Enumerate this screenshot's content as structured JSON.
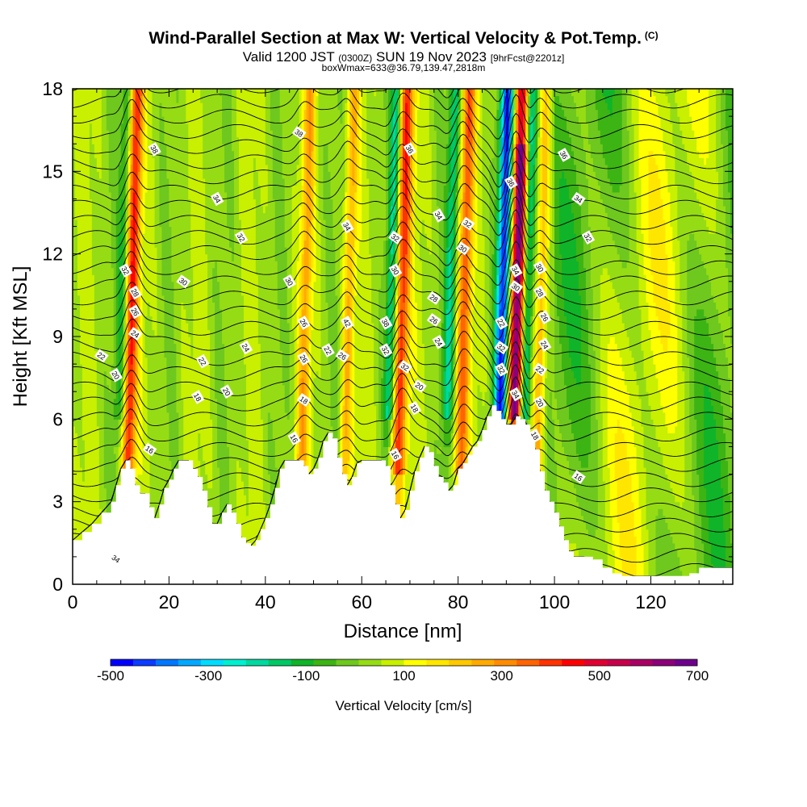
{
  "header": {
    "title": "Wind-Parallel Section at Max W: Vertical Velocity & Pot.Temp.",
    "title_mark": "(C)",
    "valid_prefix": "Valid 1200 JST",
    "valid_utc": "(0300Z)",
    "valid_date": "SUN 19 Nov 2023",
    "forecast": "[9hrFcst@2201z]",
    "box_info": "boxWmax=633@36.79,139.47,2818m"
  },
  "chart_data": {
    "type": "heatmap",
    "title": "Wind-Parallel Section at Max W: Vertical Velocity & Pot.Temp.",
    "xlabel": "Distance [nm]",
    "ylabel": "Height [Kft MSL]",
    "xlim": [
      0,
      137
    ],
    "ylim": [
      0,
      18
    ],
    "x_ticks": [
      "0",
      "20",
      "40",
      "60",
      "80",
      "100",
      "120"
    ],
    "y_ticks": [
      "0",
      "3",
      "6",
      "9",
      "12",
      "15",
      "18"
    ],
    "colorbar": {
      "label": "Vertical Velocity [cm/s]",
      "range": [
        -500,
        700
      ],
      "tick_labels": [
        "-500",
        "-300",
        "-100",
        "100",
        "300",
        "500",
        "700"
      ],
      "colors": [
        "#0000ff",
        "#0b3cff",
        "#0077ff",
        "#00a9ff",
        "#00dcff",
        "#00f0d0",
        "#00d9a0",
        "#00c864",
        "#10b428",
        "#3cb414",
        "#6ec81e",
        "#96dc14",
        "#c8f000",
        "#ffff00",
        "#ffe600",
        "#ffc800",
        "#ffaa00",
        "#ff8c00",
        "#ff6400",
        "#ff3200",
        "#ff0000",
        "#e10032",
        "#c8004b",
        "#aa0064",
        "#8c0078",
        "#6e008c"
      ]
    },
    "terrain_kft": [
      [
        0,
        1.6
      ],
      [
        2,
        1.9
      ],
      [
        4,
        2.2
      ],
      [
        6,
        2.6
      ],
      [
        8,
        3.0
      ],
      [
        9,
        3.6
      ],
      [
        10,
        4.2
      ],
      [
        11,
        4.5
      ],
      [
        12,
        4.2
      ],
      [
        13,
        3.6
      ],
      [
        14,
        3.3
      ],
      [
        15,
        3.3
      ],
      [
        16,
        2.8
      ],
      [
        17,
        2.4
      ],
      [
        18,
        2.9
      ],
      [
        19,
        3.5
      ],
      [
        20,
        3.8
      ],
      [
        21,
        4.2
      ],
      [
        22,
        4.5
      ],
      [
        24,
        4.5
      ],
      [
        25,
        4.2
      ],
      [
        26,
        3.9
      ],
      [
        27,
        3.4
      ],
      [
        28,
        2.8
      ],
      [
        29,
        2.2
      ],
      [
        30,
        2.2
      ],
      [
        31,
        2.6
      ],
      [
        32,
        2.9
      ],
      [
        33,
        2.6
      ],
      [
        34,
        2.2
      ],
      [
        35,
        1.7
      ],
      [
        36,
        1.5
      ],
      [
        37,
        1.4
      ],
      [
        38,
        1.6
      ],
      [
        39,
        2.0
      ],
      [
        40,
        2.4
      ],
      [
        41,
        2.9
      ],
      [
        42,
        3.5
      ],
      [
        43,
        4.2
      ],
      [
        44,
        4.5
      ],
      [
        46,
        4.5
      ],
      [
        47,
        4.5
      ],
      [
        48,
        4.3
      ],
      [
        49,
        4.0
      ],
      [
        50,
        4.2
      ],
      [
        51,
        4.6
      ],
      [
        52,
        5.2
      ],
      [
        53,
        5.5
      ],
      [
        54,
        5.3
      ],
      [
        55,
        4.6
      ],
      [
        56,
        4.0
      ],
      [
        57,
        3.6
      ],
      [
        58,
        3.9
      ],
      [
        59,
        4.4
      ],
      [
        60,
        4.5
      ],
      [
        62,
        4.5
      ],
      [
        64,
        4.5
      ],
      [
        65,
        4.3
      ],
      [
        66,
        3.6
      ],
      [
        67,
        2.9
      ],
      [
        68,
        2.4
      ],
      [
        69,
        2.7
      ],
      [
        70,
        3.4
      ],
      [
        71,
        4.1
      ],
      [
        72,
        4.6
      ],
      [
        73,
        5.0
      ],
      [
        74,
        4.8
      ],
      [
        75,
        4.3
      ],
      [
        76,
        3.9
      ],
      [
        77,
        3.7
      ],
      [
        78,
        3.4
      ],
      [
        79,
        3.6
      ],
      [
        80,
        4.2
      ],
      [
        81,
        4.4
      ],
      [
        82,
        4.7
      ],
      [
        83,
        5.0
      ],
      [
        84,
        5.2
      ],
      [
        85,
        5.6
      ],
      [
        86,
        6.1
      ],
      [
        87,
        6.5
      ],
      [
        88,
        6.3
      ],
      [
        89,
        6.0
      ],
      [
        90,
        5.8
      ],
      [
        91,
        5.8
      ],
      [
        92,
        6.1
      ],
      [
        93,
        6.0
      ],
      [
        94,
        5.8
      ],
      [
        95,
        5.5
      ],
      [
        96,
        4.9
      ],
      [
        97,
        4.1
      ],
      [
        98,
        3.4
      ],
      [
        99,
        3.0
      ],
      [
        100,
        2.6
      ],
      [
        101,
        2.1
      ],
      [
        102,
        1.6
      ],
      [
        103,
        1.2
      ],
      [
        104,
        1.0
      ],
      [
        106,
        1.0
      ],
      [
        108,
        0.9
      ],
      [
        110,
        0.6
      ],
      [
        112,
        0.4
      ],
      [
        114,
        0.3
      ],
      [
        120,
        0.3
      ],
      [
        126,
        0.3
      ],
      [
        128,
        0.4
      ],
      [
        130,
        0.6
      ],
      [
        134,
        0.6
      ],
      [
        137,
        0.6
      ]
    ],
    "contour_labels": [
      {
        "x": 9,
        "y": 0.93,
        "text": "34"
      },
      {
        "x": 17,
        "y": 15.8,
        "text": "38"
      },
      {
        "x": 30,
        "y": 14.0,
        "text": "34"
      },
      {
        "x": 47,
        "y": 16.4,
        "text": "38"
      },
      {
        "x": 70,
        "y": 15.8,
        "text": "36"
      },
      {
        "x": 102,
        "y": 15.6,
        "text": "36"
      },
      {
        "x": 105,
        "y": 14.0,
        "text": "34"
      },
      {
        "x": 57,
        "y": 13.0,
        "text": "34"
      },
      {
        "x": 76,
        "y": 13.4,
        "text": "34"
      },
      {
        "x": 82,
        "y": 13.1,
        "text": "32"
      },
      {
        "x": 91,
        "y": 14.6,
        "text": "36"
      },
      {
        "x": 35,
        "y": 12.6,
        "text": "32"
      },
      {
        "x": 67,
        "y": 12.6,
        "text": "32"
      },
      {
        "x": 107,
        "y": 12.6,
        "text": "32"
      },
      {
        "x": 11,
        "y": 11.4,
        "text": "32"
      },
      {
        "x": 23,
        "y": 11.0,
        "text": "30"
      },
      {
        "x": 45,
        "y": 11.0,
        "text": "30"
      },
      {
        "x": 67,
        "y": 11.4,
        "text": "30"
      },
      {
        "x": 81,
        "y": 12.2,
        "text": "30"
      },
      {
        "x": 97,
        "y": 11.5,
        "text": "30"
      },
      {
        "x": 13,
        "y": 10.6,
        "text": "28"
      },
      {
        "x": 75,
        "y": 10.4,
        "text": "28"
      },
      {
        "x": 97,
        "y": 10.6,
        "text": "28"
      },
      {
        "x": 13,
        "y": 9.9,
        "text": "26"
      },
      {
        "x": 75,
        "y": 9.6,
        "text": "26"
      },
      {
        "x": 98,
        "y": 9.7,
        "text": "26"
      },
      {
        "x": 48,
        "y": 9.5,
        "text": "26"
      },
      {
        "x": 13,
        "y": 9.1,
        "text": "24"
      },
      {
        "x": 36,
        "y": 8.6,
        "text": "24"
      },
      {
        "x": 98,
        "y": 8.7,
        "text": "24"
      },
      {
        "x": 6,
        "y": 8.3,
        "text": "22"
      },
      {
        "x": 27,
        "y": 8.1,
        "text": "22"
      },
      {
        "x": 53,
        "y": 8.5,
        "text": "22"
      },
      {
        "x": 97,
        "y": 7.8,
        "text": "22"
      },
      {
        "x": 9,
        "y": 7.6,
        "text": "20"
      },
      {
        "x": 32,
        "y": 7.0,
        "text": "20"
      },
      {
        "x": 72,
        "y": 7.2,
        "text": "20"
      },
      {
        "x": 97,
        "y": 6.6,
        "text": "20"
      },
      {
        "x": 26,
        "y": 6.8,
        "text": "18"
      },
      {
        "x": 48,
        "y": 6.7,
        "text": "18"
      },
      {
        "x": 71,
        "y": 6.4,
        "text": "18"
      },
      {
        "x": 96,
        "y": 5.4,
        "text": "18"
      },
      {
        "x": 16,
        "y": 4.9,
        "text": "16"
      },
      {
        "x": 46,
        "y": 5.3,
        "text": "16"
      },
      {
        "x": 67,
        "y": 4.7,
        "text": "16"
      },
      {
        "x": 105,
        "y": 3.9,
        "text": "16"
      },
      {
        "x": 48,
        "y": 8.2,
        "text": "26"
      },
      {
        "x": 57,
        "y": 9.5,
        "text": "42"
      },
      {
        "x": 56,
        "y": 8.3,
        "text": "26"
      },
      {
        "x": 65,
        "y": 9.5,
        "text": "38"
      },
      {
        "x": 65,
        "y": 8.5,
        "text": "32"
      },
      {
        "x": 69,
        "y": 7.9,
        "text": "32"
      },
      {
        "x": 76,
        "y": 8.8,
        "text": "24"
      },
      {
        "x": 89,
        "y": 9.5,
        "text": "22"
      },
      {
        "x": 89,
        "y": 8.6,
        "text": "32"
      },
      {
        "x": 89,
        "y": 7.8,
        "text": "32"
      },
      {
        "x": 92,
        "y": 11.4,
        "text": "34"
      },
      {
        "x": 92,
        "y": 10.8,
        "text": "30"
      },
      {
        "x": 92,
        "y": 6.9,
        "text": "34"
      }
    ],
    "updrafts": [
      {
        "x": 12,
        "strength": 380,
        "width": 1.4
      },
      {
        "x": 48,
        "strength": 200,
        "width": 1.3
      },
      {
        "x": 57,
        "strength": 200,
        "width": 1.2
      },
      {
        "x": 68,
        "strength": 380,
        "width": 1.6
      },
      {
        "x": 81,
        "strength": 300,
        "width": 1.4
      },
      {
        "x": 92,
        "strength": 633,
        "width": 1.5
      },
      {
        "x": 97,
        "strength": 180,
        "width": 1.2
      }
    ],
    "downdrafts": [
      {
        "x": 10,
        "strength": -150,
        "width": 1.2
      },
      {
        "x": 66,
        "strength": -250,
        "width": 1.2
      },
      {
        "x": 78,
        "strength": -200,
        "width": 1.2
      },
      {
        "x": 89,
        "strength": -480,
        "width": 1.4
      },
      {
        "x": 94,
        "strength": -300,
        "width": 1.2
      }
    ]
  }
}
